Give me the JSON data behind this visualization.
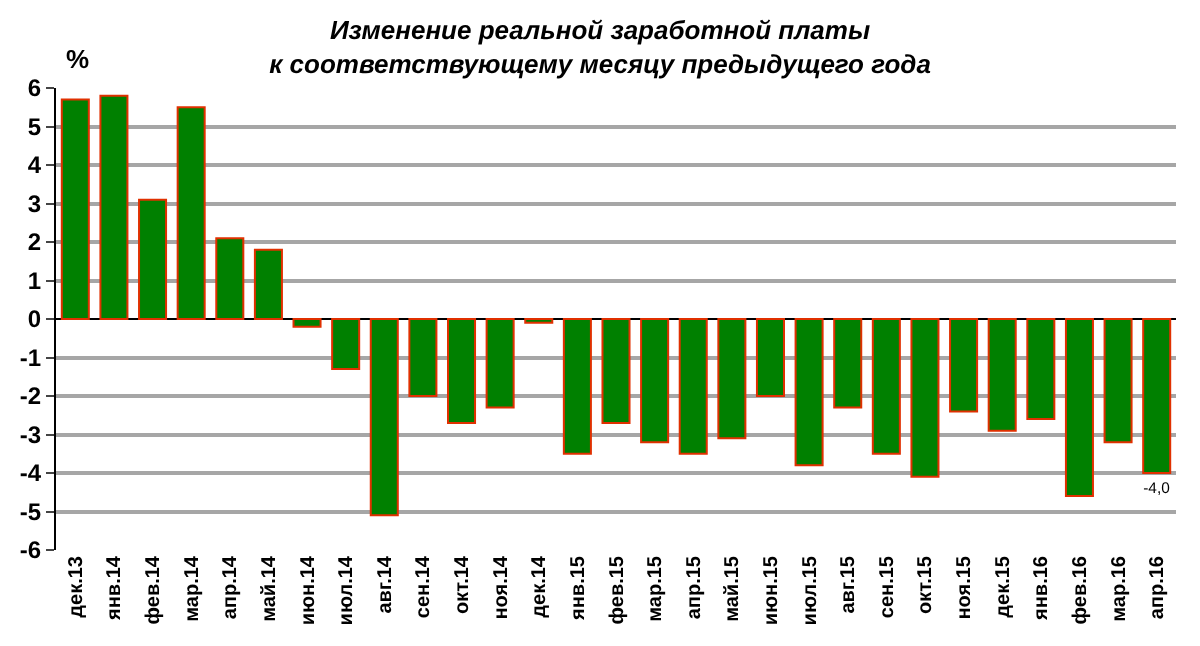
{
  "chart_data": {
    "type": "bar",
    "title": "Изменение реальной заработной платы\nк соответствующему месяцу предыдущего года",
    "ylabel": "%",
    "categories": [
      "дек.13",
      "янв.14",
      "фев.14",
      "мар.14",
      "апр.14",
      "май.14",
      "июн.14",
      "июл.14",
      "авг.14",
      "сен.14",
      "окт.14",
      "ноя.14",
      "дек.14",
      "янв.15",
      "фев.15",
      "мар.15",
      "апр.15",
      "май.15",
      "июн.15",
      "июл.15",
      "авг.15",
      "сен.15",
      "окт.15",
      "ноя.15",
      "дек.15",
      "янв.16",
      "фев.16",
      "мар.16",
      "апр.16"
    ],
    "values": [
      5.7,
      5.8,
      3.1,
      5.5,
      2.1,
      1.8,
      -0.2,
      -1.3,
      -5.1,
      -2.0,
      -2.7,
      -2.3,
      -0.1,
      -3.5,
      -2.7,
      -3.2,
      -3.5,
      -3.1,
      -2.0,
      -3.8,
      -2.3,
      -3.5,
      -4.1,
      -2.4,
      -2.9,
      -2.6,
      -4.6,
      -3.2,
      -4.0
    ],
    "value_labels": [
      null,
      null,
      null,
      null,
      null,
      null,
      null,
      null,
      null,
      null,
      null,
      null,
      null,
      null,
      null,
      null,
      null,
      null,
      null,
      null,
      null,
      null,
      null,
      null,
      null,
      null,
      null,
      null,
      "-4,0"
    ],
    "color": "#008000",
    "ylim": [
      -6,
      6
    ],
    "yticks": [
      -6,
      -5,
      -4,
      -3,
      -2,
      -1,
      0,
      1,
      2,
      3,
      4,
      5,
      6
    ],
    "grid": "y",
    "legend": false
  }
}
